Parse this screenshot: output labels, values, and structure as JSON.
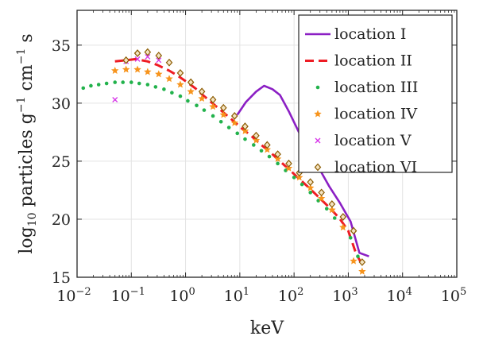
{
  "chart_data": {
    "type": "line",
    "xlabel": "keV",
    "ylabel": "log10 particles g−1 cm−1 s",
    "ylabel_parts": {
      "pre": "log",
      "sub": "10",
      "mid": " particles g",
      "sup1": "−1",
      "mid2": " cm",
      "sup2": "−1",
      "post": " s"
    },
    "xscale": "log",
    "xlim": [
      0.01,
      100000
    ],
    "ylim": [
      15,
      38
    ],
    "grid": true,
    "legend_position": "top-right",
    "x_ticks": [
      {
        "v": 0.01,
        "base": "10",
        "exp": "−2"
      },
      {
        "v": 0.1,
        "base": "10",
        "exp": "−1"
      },
      {
        "v": 1,
        "base": "10",
        "exp": "0"
      },
      {
        "v": 10,
        "base": "10",
        "exp": "1"
      },
      {
        "v": 100,
        "base": "10",
        "exp": "2"
      },
      {
        "v": 1000,
        "base": "10",
        "exp": "3"
      },
      {
        "v": 10000,
        "base": "10",
        "exp": "4"
      },
      {
        "v": 100000,
        "base": "10",
        "exp": "5"
      }
    ],
    "y_ticks": [
      15,
      20,
      25,
      30,
      35
    ],
    "series": [
      {
        "name": "location I",
        "style": "solid",
        "color": "#8b1fc4",
        "x": [
          9,
          13,
          20,
          28,
          40,
          55,
          80,
          120,
          180,
          280,
          450,
          700,
          1100,
          1600,
          2400
        ],
        "y": [
          29.0,
          30.1,
          31.0,
          31.5,
          31.2,
          30.7,
          29.3,
          27.6,
          26.0,
          24.5,
          22.8,
          21.4,
          19.8,
          17.1,
          16.8
        ]
      },
      {
        "name": "location II",
        "style": "dashed",
        "color": "#ee1c24",
        "x": [
          0.05,
          0.08,
          0.12,
          0.2,
          0.3,
          0.5,
          0.7,
          1,
          1.5,
          2.2,
          3.3,
          5,
          7.5,
          11,
          17,
          25,
          38,
          55,
          85,
          130,
          200,
          300,
          450,
          680,
          1000,
          1400,
          1900
        ],
        "y": [
          33.6,
          33.7,
          33.8,
          33.6,
          33.3,
          32.8,
          32.4,
          31.9,
          31.3,
          30.6,
          29.9,
          29.2,
          28.5,
          27.8,
          27.1,
          26.4,
          25.7,
          25.0,
          24.2,
          23.4,
          22.6,
          21.8,
          21.0,
          20.1,
          19.0,
          17.0,
          15.9
        ]
      },
      {
        "name": "location III",
        "style": "dots",
        "color": "#22b24c",
        "x": [
          0.013,
          0.018,
          0.025,
          0.035,
          0.05,
          0.07,
          0.1,
          0.14,
          0.2,
          0.28,
          0.4,
          0.56,
          0.8,
          1.1,
          1.6,
          2.2,
          3.2,
          4.5,
          6.3,
          9,
          12.5,
          18,
          25,
          35,
          50,
          70,
          100,
          140,
          200,
          280,
          400,
          560,
          800,
          1100,
          1500
        ],
        "y": [
          31.3,
          31.5,
          31.6,
          31.7,
          31.8,
          31.8,
          31.8,
          31.7,
          31.6,
          31.4,
          31.2,
          30.9,
          30.6,
          30.2,
          29.8,
          29.4,
          28.9,
          28.4,
          27.9,
          27.4,
          26.9,
          26.4,
          25.9,
          25.4,
          24.8,
          24.2,
          23.6,
          23.0,
          22.3,
          21.6,
          20.9,
          20.1,
          19.3,
          18.4,
          16.8
        ]
      },
      {
        "name": "location IV",
        "style": "star",
        "color": "#f7941d",
        "x": [
          0.05,
          0.08,
          0.13,
          0.2,
          0.32,
          0.5,
          0.8,
          1.25,
          2,
          3.2,
          5,
          8,
          12.5,
          20,
          32,
          50,
          80,
          125,
          200,
          320,
          500,
          800,
          1250,
          1800
        ],
        "y": [
          32.8,
          32.9,
          32.9,
          32.7,
          32.5,
          32.1,
          31.6,
          31.0,
          30.4,
          29.7,
          29.0,
          28.3,
          27.6,
          26.8,
          26.0,
          25.2,
          24.4,
          23.6,
          22.7,
          21.8,
          20.8,
          19.3,
          16.4,
          15.5
        ]
      },
      {
        "name": "location V",
        "style": "x",
        "color": "#d633e8",
        "x": [
          0.05,
          0.08,
          0.13,
          0.2,
          0.32
        ],
        "y": [
          30.3,
          33.6,
          33.8,
          34.0,
          33.7
        ]
      },
      {
        "name": "location VI",
        "style": "diamond",
        "color": "#8a5a00",
        "x": [
          0.08,
          0.13,
          0.2,
          0.32,
          0.5,
          0.8,
          1.25,
          2,
          3.2,
          5,
          8,
          12.5,
          20,
          32,
          50,
          80,
          125,
          200,
          320,
          500,
          800,
          1250,
          1800
        ],
        "y": [
          33.7,
          34.3,
          34.4,
          34.1,
          33.5,
          32.6,
          31.8,
          31.0,
          30.3,
          29.6,
          28.9,
          28.0,
          27.2,
          26.4,
          25.6,
          24.8,
          24.0,
          23.2,
          22.3,
          21.3,
          20.2,
          19.0,
          16.3
        ]
      }
    ]
  }
}
